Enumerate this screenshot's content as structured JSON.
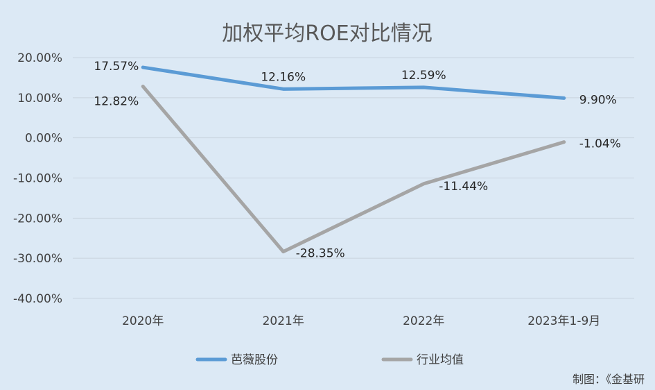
{
  "chart_data": {
    "type": "line",
    "title": "加权平均ROE对比情况",
    "categories": [
      "2020年",
      "2021年",
      "2022年",
      "2023年1-9月"
    ],
    "y_ticks": [
      "20.00%",
      "10.00%",
      "0.00%",
      "-10.00%",
      "-20.00%",
      "-30.00%",
      "-40.00%"
    ],
    "ylim": [
      -40,
      20
    ],
    "grid": true,
    "legend_position": "bottom",
    "series": [
      {
        "name": "芭薇股份",
        "values": [
          17.57,
          12.16,
          12.59,
          9.9
        ],
        "labels": [
          "17.57%",
          "12.16%",
          "12.59%",
          "9.90%"
        ],
        "color": "#5b9bd5"
      },
      {
        "name": "行业均值",
        "values": [
          12.82,
          -28.35,
          -11.44,
          -1.04
        ],
        "labels": [
          "12.82%",
          "-28.35%",
          "-11.44%",
          "-1.04%"
        ],
        "color": "#a5a5a5"
      }
    ],
    "source_note": "制图：《金基研"
  }
}
